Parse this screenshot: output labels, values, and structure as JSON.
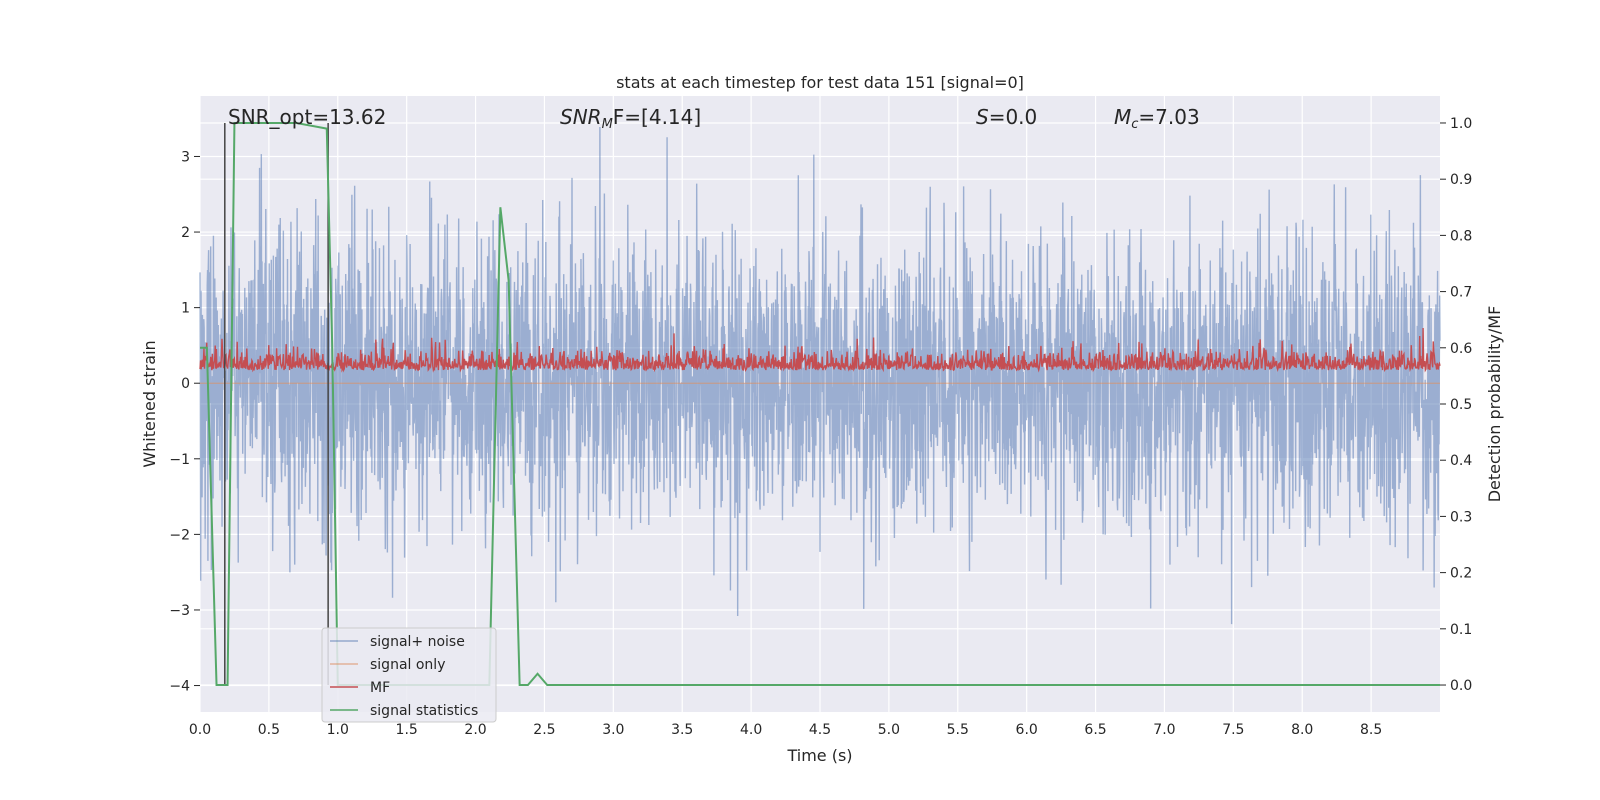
{
  "chart_data": {
    "type": "line",
    "title": "stats at each timestep for test data 151 [signal=0]",
    "xlabel": "Time (s)",
    "ylabel": "Whitened strain",
    "y2label": "Detection probability/MF",
    "xlim": [
      0.0,
      9.0
    ],
    "ylim": [
      -4.35,
      3.8
    ],
    "y2lim": [
      -0.048,
      1.048
    ],
    "x_ticks": [
      "0.0",
      "0.5",
      "1.0",
      "1.5",
      "2.0",
      "2.5",
      "3.0",
      "3.5",
      "4.0",
      "4.5",
      "5.0",
      "5.5",
      "6.0",
      "6.5",
      "7.0",
      "7.5",
      "8.0",
      "8.5"
    ],
    "y_ticks": [
      "3",
      "2",
      "1",
      "0",
      "−1",
      "−2",
      "−3",
      "−4"
    ],
    "y2_ticks": [
      "1.0",
      "0.9",
      "0.8",
      "0.7",
      "0.6",
      "0.5",
      "0.4",
      "0.3",
      "0.2",
      "0.1",
      "0.0"
    ],
    "grid": true,
    "legend_position": "lower-left",
    "annotations": {
      "snr_opt": "SNR_opt=13.62",
      "snr_mf_sym": "SNR",
      "snr_mf_sub": "M",
      "snr_mf_rest": "F=[4.14]",
      "s_sym": "S",
      "s_rest": "=0.0",
      "mc_sym": "M",
      "mc_sub": "c",
      "mc_rest": "=7.03"
    },
    "series": [
      {
        "name": "signal+ noise",
        "color": "#4c72b0",
        "axis": "left",
        "note": "dense noise trace, roughly within ±2 with spikes to about ±3.5"
      },
      {
        "name": "signal only",
        "color": "#dd8452",
        "axis": "left",
        "values_description": "flat at 0"
      },
      {
        "name": "MF",
        "color": "#c44e52",
        "axis": "right",
        "values_description": "noisy band around 0.57, range about 0.55–0.65"
      },
      {
        "name": "signal statistics",
        "color": "#55a868",
        "axis": "right",
        "x": [
          0.0,
          0.05,
          0.12,
          0.2,
          0.25,
          0.4,
          0.7,
          0.92,
          0.96,
          1.0,
          2.1,
          2.18,
          2.24,
          2.32,
          2.38,
          2.45,
          2.52,
          9.0
        ],
        "y": [
          0.6,
          0.6,
          0.0,
          0.0,
          1.0,
          1.0,
          1.0,
          0.99,
          0.6,
          0.0,
          0.0,
          0.85,
          0.72,
          0.0,
          0.0,
          0.02,
          0.0,
          0.0
        ]
      }
    ],
    "markers": {
      "color": "#444444",
      "x": [
        0.18,
        0.93
      ],
      "y2_top": 1.0,
      "y2_bottom": 0.0
    }
  }
}
